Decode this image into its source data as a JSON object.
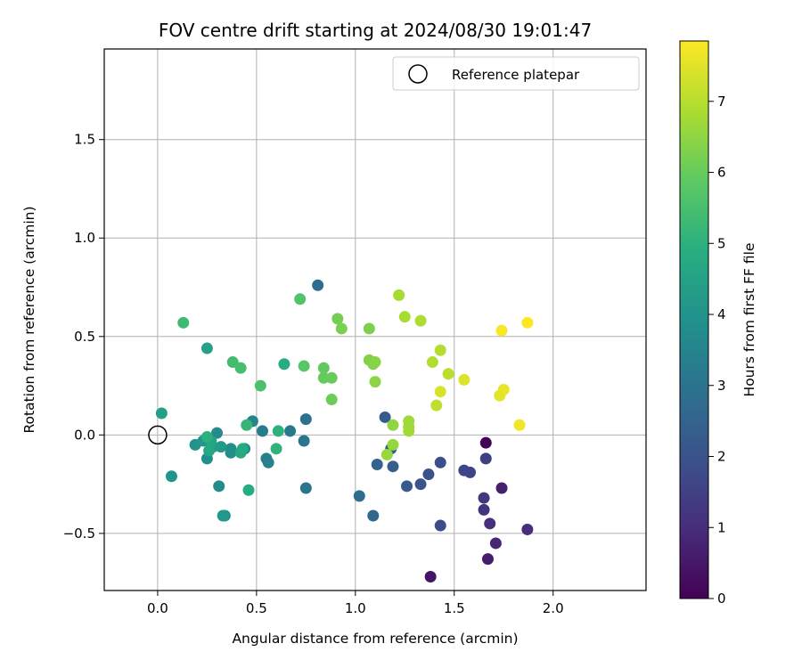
{
  "chart_data": {
    "type": "scatter",
    "title": "FOV centre drift starting at 2024/08/30 19:01:47",
    "xlabel": "Angular distance from reference (arcmin)",
    "ylabel": "Rotation from reference (arcmin)",
    "xlim": [
      -0.27,
      2.47
    ],
    "ylim": [
      -0.79,
      1.96
    ],
    "xticks": [
      0.0,
      0.5,
      1.0,
      1.5,
      2.0
    ],
    "xtick_labels": [
      "0.0",
      "0.5",
      "1.0",
      "1.5",
      "2.0"
    ],
    "yticks": [
      -0.5,
      0.0,
      0.5,
      1.0,
      1.5
    ],
    "ytick_labels": [
      "−0.5",
      "0.0",
      "0.5",
      "1.0",
      "1.5"
    ],
    "grid": true,
    "legend": {
      "placement": "top-right",
      "label": "Reference platepar",
      "marker": "open-circle"
    },
    "reference_point": {
      "x": 0.0,
      "y": 0.0
    },
    "colorbar": {
      "label": "Hours from first FF file",
      "colormap": "viridis",
      "range": [
        0,
        7.85
      ],
      "ticks": [
        0,
        1,
        2,
        3,
        4,
        5,
        6,
        7
      ],
      "tick_labels": [
        "0",
        "1",
        "2",
        "3",
        "4",
        "5",
        "6",
        "7"
      ]
    },
    "points": [
      {
        "x": 1.66,
        "y": -0.04,
        "hours": 0.05
      },
      {
        "x": 1.38,
        "y": -0.72,
        "hours": 0.4
      },
      {
        "x": 1.67,
        "y": -0.63,
        "hours": 0.65
      },
      {
        "x": 1.74,
        "y": -0.27,
        "hours": 0.7
      },
      {
        "x": 1.71,
        "y": -0.55,
        "hours": 0.85
      },
      {
        "x": 1.87,
        "y": -0.48,
        "hours": 1.0
      },
      {
        "x": 1.68,
        "y": -0.45,
        "hours": 1.1
      },
      {
        "x": 1.65,
        "y": -0.38,
        "hours": 1.2
      },
      {
        "x": 1.65,
        "y": -0.32,
        "hours": 1.3
      },
      {
        "x": 1.66,
        "y": -0.12,
        "hours": 1.45
      },
      {
        "x": 1.58,
        "y": -0.19,
        "hours": 1.6
      },
      {
        "x": 1.55,
        "y": -0.18,
        "hours": 1.7
      },
      {
        "x": 1.43,
        "y": -0.46,
        "hours": 1.8
      },
      {
        "x": 1.43,
        "y": -0.14,
        "hours": 1.9
      },
      {
        "x": 1.37,
        "y": -0.2,
        "hours": 2.0
      },
      {
        "x": 1.33,
        "y": -0.25,
        "hours": 2.1
      },
      {
        "x": 1.26,
        "y": -0.26,
        "hours": 2.2
      },
      {
        "x": 1.15,
        "y": 0.09,
        "hours": 2.3
      },
      {
        "x": 1.18,
        "y": -0.07,
        "hours": 2.35
      },
      {
        "x": 1.19,
        "y": -0.16,
        "hours": 2.45
      },
      {
        "x": 1.11,
        "y": -0.15,
        "hours": 2.55
      },
      {
        "x": 1.09,
        "y": -0.41,
        "hours": 2.65
      },
      {
        "x": 1.02,
        "y": -0.31,
        "hours": 2.75
      },
      {
        "x": 0.81,
        "y": 0.76,
        "hours": 2.85
      },
      {
        "x": 0.75,
        "y": 0.08,
        "hours": 2.95
      },
      {
        "x": 0.75,
        "y": -0.27,
        "hours": 3.05
      },
      {
        "x": 0.74,
        "y": -0.03,
        "hours": 3.1
      },
      {
        "x": 0.67,
        "y": 0.02,
        "hours": 3.2
      },
      {
        "x": 0.53,
        "y": 0.02,
        "hours": 3.3
      },
      {
        "x": 0.55,
        "y": -0.12,
        "hours": 3.35
      },
      {
        "x": 0.56,
        "y": -0.14,
        "hours": 3.45
      },
      {
        "x": 0.48,
        "y": 0.07,
        "hours": 3.55
      },
      {
        "x": 0.44,
        "y": -0.07,
        "hours": 3.6
      },
      {
        "x": 0.3,
        "y": 0.01,
        "hours": 3.7
      },
      {
        "x": 0.31,
        "y": -0.26,
        "hours": 3.75
      },
      {
        "x": 0.37,
        "y": -0.07,
        "hours": 3.8
      },
      {
        "x": 0.37,
        "y": -0.09,
        "hours": 3.85
      },
      {
        "x": 0.25,
        "y": -0.12,
        "hours": 3.9
      },
      {
        "x": 0.19,
        "y": -0.05,
        "hours": 3.95
      },
      {
        "x": 0.34,
        "y": -0.41,
        "hours": 4.0
      },
      {
        "x": 0.07,
        "y": -0.21,
        "hours": 4.05
      },
      {
        "x": 0.23,
        "y": -0.03,
        "hours": 4.15
      },
      {
        "x": 0.32,
        "y": -0.06,
        "hours": 4.25
      },
      {
        "x": 0.28,
        "y": -0.06,
        "hours": 4.35
      },
      {
        "x": 0.02,
        "y": 0.11,
        "hours": 4.45
      },
      {
        "x": 0.25,
        "y": 0.44,
        "hours": 4.5
      },
      {
        "x": 0.27,
        "y": -0.03,
        "hours": 4.6
      },
      {
        "x": 0.26,
        "y": -0.08,
        "hours": 4.7
      },
      {
        "x": 0.42,
        "y": -0.09,
        "hours": 4.75
      },
      {
        "x": 0.43,
        "y": -0.07,
        "hours": 4.8
      },
      {
        "x": 0.46,
        "y": -0.28,
        "hours": 4.85
      },
      {
        "x": 0.64,
        "y": 0.36,
        "hours": 4.9
      },
      {
        "x": 0.25,
        "y": -0.01,
        "hours": 5.0
      },
      {
        "x": 0.61,
        "y": 0.02,
        "hours": 5.05
      },
      {
        "x": 0.6,
        "y": -0.07,
        "hours": 5.1
      },
      {
        "x": 0.45,
        "y": 0.05,
        "hours": 5.2
      },
      {
        "x": 0.33,
        "y": -0.41,
        "hours": 4.2
      },
      {
        "x": 0.13,
        "y": 0.57,
        "hours": 5.35
      },
      {
        "x": 0.38,
        "y": 0.37,
        "hours": 5.45
      },
      {
        "x": 0.42,
        "y": 0.34,
        "hours": 5.5
      },
      {
        "x": 0.52,
        "y": 0.25,
        "hours": 5.6
      },
      {
        "x": 0.72,
        "y": 0.69,
        "hours": 5.7
      },
      {
        "x": 0.74,
        "y": 0.35,
        "hours": 5.8
      },
      {
        "x": 0.84,
        "y": 0.34,
        "hours": 5.95
      },
      {
        "x": 0.84,
        "y": 0.29,
        "hours": 6.0
      },
      {
        "x": 0.88,
        "y": 0.29,
        "hours": 6.05
      },
      {
        "x": 0.88,
        "y": 0.18,
        "hours": 6.1
      },
      {
        "x": 0.91,
        "y": 0.59,
        "hours": 6.2
      },
      {
        "x": 0.93,
        "y": 0.54,
        "hours": 6.25
      },
      {
        "x": 1.07,
        "y": 0.54,
        "hours": 6.3
      },
      {
        "x": 1.07,
        "y": 0.38,
        "hours": 6.35
      },
      {
        "x": 1.09,
        "y": 0.36,
        "hours": 6.4
      },
      {
        "x": 1.1,
        "y": 0.37,
        "hours": 6.45
      },
      {
        "x": 1.1,
        "y": 0.27,
        "hours": 6.5
      },
      {
        "x": 1.19,
        "y": 0.05,
        "hours": 6.55
      },
      {
        "x": 1.19,
        "y": -0.05,
        "hours": 6.6
      },
      {
        "x": 1.16,
        "y": -0.1,
        "hours": 6.65
      },
      {
        "x": 1.27,
        "y": 0.07,
        "hours": 6.7
      },
      {
        "x": 1.27,
        "y": 0.04,
        "hours": 6.72
      },
      {
        "x": 1.27,
        "y": 0.02,
        "hours": 6.75
      },
      {
        "x": 1.22,
        "y": 0.71,
        "hours": 6.8
      },
      {
        "x": 1.25,
        "y": 0.6,
        "hours": 6.85
      },
      {
        "x": 1.33,
        "y": 0.58,
        "hours": 6.9
      },
      {
        "x": 1.39,
        "y": 0.37,
        "hours": 6.95
      },
      {
        "x": 1.43,
        "y": 0.43,
        "hours": 7.0
      },
      {
        "x": 1.47,
        "y": 0.31,
        "hours": 7.05
      },
      {
        "x": 1.41,
        "y": 0.15,
        "hours": 7.1
      },
      {
        "x": 1.43,
        "y": 0.22,
        "hours": 7.4
      },
      {
        "x": 1.55,
        "y": 0.28,
        "hours": 7.45
      },
      {
        "x": 1.73,
        "y": 0.2,
        "hours": 7.55
      },
      {
        "x": 1.75,
        "y": 0.23,
        "hours": 7.6
      },
      {
        "x": 1.83,
        "y": 0.05,
        "hours": 7.7
      },
      {
        "x": 1.74,
        "y": 0.53,
        "hours": 7.8
      },
      {
        "x": 1.87,
        "y": 0.57,
        "hours": 7.85
      }
    ]
  }
}
